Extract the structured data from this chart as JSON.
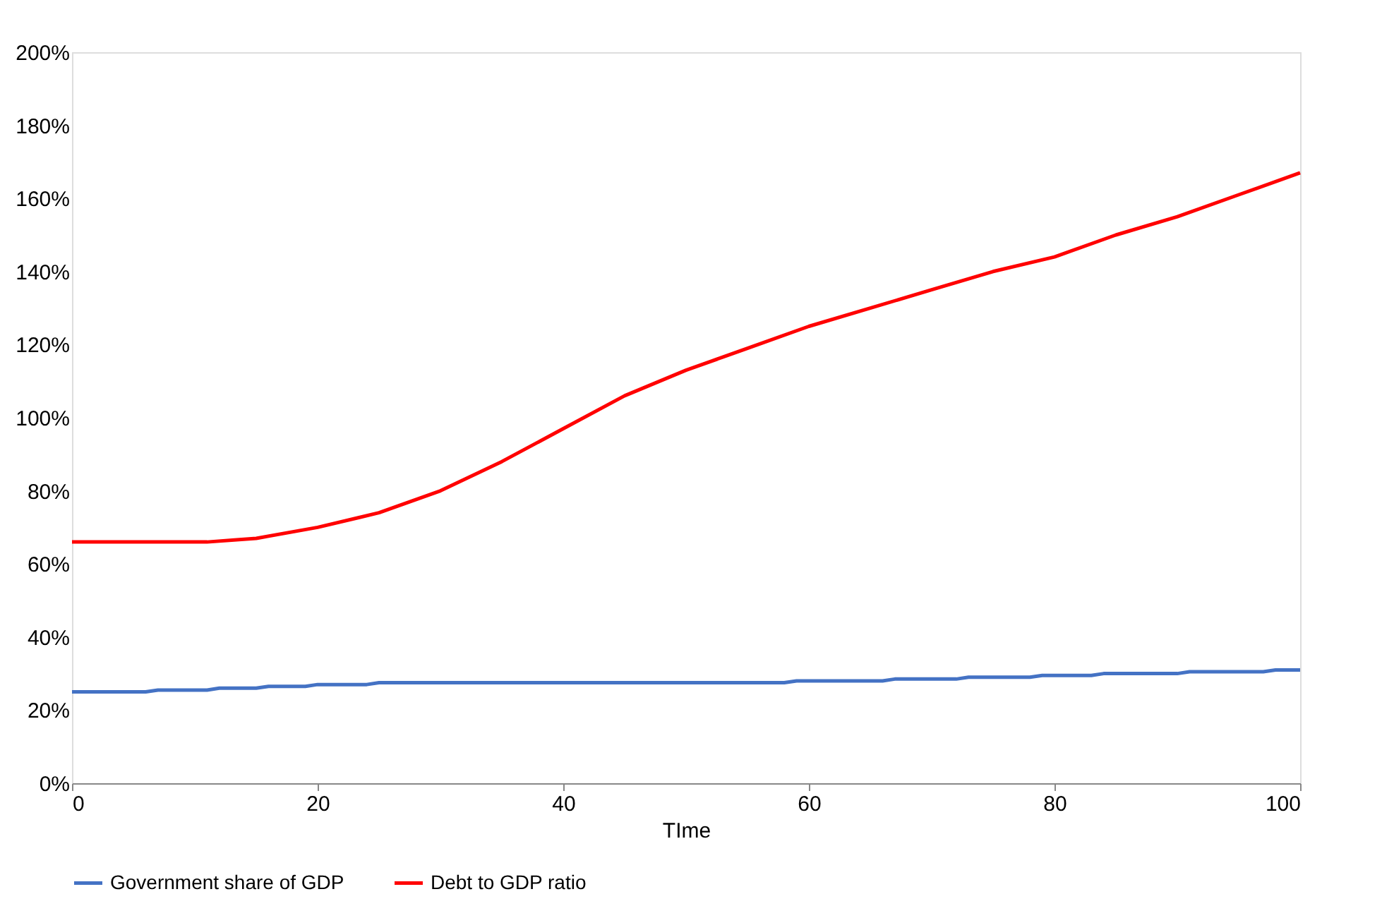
{
  "chart_data": {
    "type": "line",
    "xlabel": "TIme",
    "xlim": [
      0,
      100
    ],
    "xticks": [
      0,
      20,
      40,
      60,
      80,
      100
    ],
    "ylim": [
      0,
      200
    ],
    "yticks": [
      {
        "value": 0,
        "label": "0%"
      },
      {
        "value": 20,
        "label": "20%"
      },
      {
        "value": 40,
        "label": "40%"
      },
      {
        "value": 60,
        "label": "60%"
      },
      {
        "value": 80,
        "label": "80%"
      },
      {
        "value": 100,
        "label": "100%"
      },
      {
        "value": 120,
        "label": "120%"
      },
      {
        "value": 140,
        "label": "140%"
      },
      {
        "value": 160,
        "label": "160%"
      },
      {
        "value": 180,
        "label": "180%"
      },
      {
        "value": 200,
        "label": "200%"
      }
    ],
    "grid": false,
    "legend": "bottom",
    "marker": "none",
    "line_style": "solid",
    "series": [
      {
        "name": "Government share of GDP",
        "color": "#4472c4",
        "x": [
          0,
          6,
          7,
          11,
          12,
          15,
          16,
          19,
          20,
          24,
          25,
          58,
          59,
          66,
          67,
          72,
          73,
          78,
          79,
          83,
          84,
          90,
          91,
          97,
          98,
          100
        ],
        "values": [
          25,
          25,
          25.5,
          25.5,
          26,
          26,
          26.5,
          26.5,
          27,
          27,
          27.5,
          27.5,
          28,
          28,
          28.5,
          28.5,
          29,
          29,
          29.5,
          29.5,
          30,
          30,
          30.5,
          30.5,
          31,
          31
        ]
      },
      {
        "name": "Debt to GDP ratio",
        "color": "#ff0000",
        "x": [
          0,
          5,
          11,
          15,
          20,
          25,
          30,
          35,
          40,
          45,
          50,
          55,
          60,
          65,
          70,
          75,
          80,
          85,
          90,
          95,
          100
        ],
        "values": [
          66,
          66,
          66,
          67,
          70,
          74,
          80,
          88,
          97,
          106,
          113,
          119,
          125,
          130,
          135,
          140,
          144,
          150,
          155,
          161,
          167
        ]
      }
    ]
  }
}
